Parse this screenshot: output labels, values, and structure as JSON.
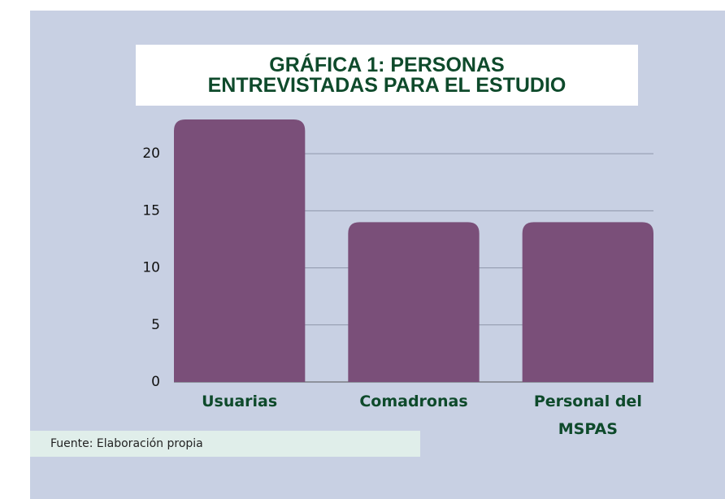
{
  "chart_data": {
    "type": "bar",
    "title": "GRÁFICA 1: PERSONAS\nENTREVISTADAS PARA EL ESTUDIO",
    "categories": [
      "Usuarias",
      "Comadronas",
      "Personal del MSPAS"
    ],
    "values": [
      23,
      14,
      14
    ],
    "color": "#7a4f79",
    "ylim": [
      0,
      23
    ],
    "yticks": [
      0,
      5,
      10,
      15,
      20
    ],
    "grid": true,
    "source": "Fuente: Elaboración propia"
  }
}
